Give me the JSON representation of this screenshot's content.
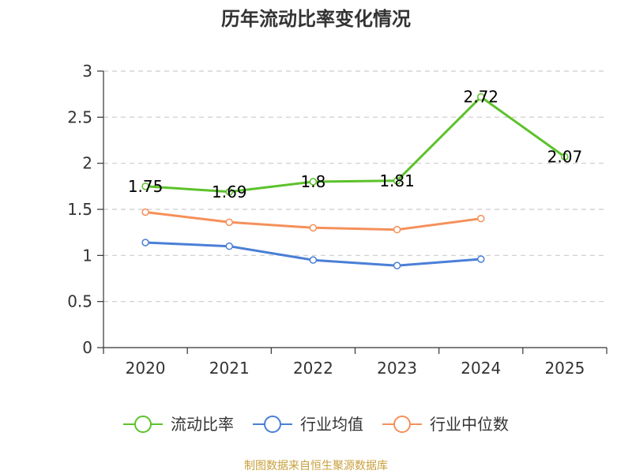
{
  "chart_data": {
    "type": "line",
    "title": "历年流动比率变化情况",
    "categories": [
      "2020",
      "2021",
      "2022",
      "2023",
      "2024",
      "2025"
    ],
    "ylim": [
      0,
      3
    ],
    "yticks": [
      0,
      0.5,
      1,
      1.5,
      2,
      2.5,
      3
    ],
    "grid": true,
    "legend_position": "bottom-center",
    "series": [
      {
        "name": "流动比率",
        "color": "#5cc22b",
        "labels": true,
        "values": [
          1.75,
          1.69,
          1.8,
          1.81,
          2.72,
          2.07
        ]
      },
      {
        "name": "行业均值",
        "color": "#4a7fd6",
        "labels": false,
        "values": [
          1.14,
          1.1,
          0.95,
          0.89,
          0.96,
          null
        ]
      },
      {
        "name": "行业中位数",
        "color": "#f5905a",
        "labels": false,
        "values": [
          1.47,
          1.36,
          1.3,
          1.28,
          1.4,
          null
        ]
      }
    ],
    "source": "制图数据来自恒生聚源数据库"
  }
}
